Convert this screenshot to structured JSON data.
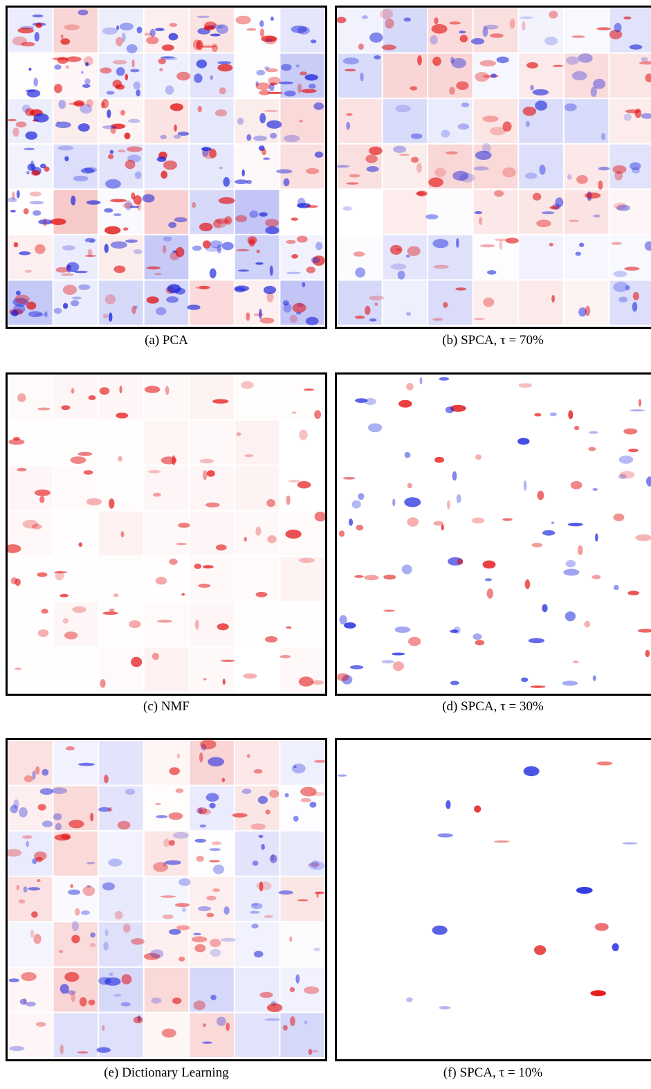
{
  "panels": [
    {
      "caption": "(a) PCA"
    },
    {
      "caption": "(b) SPCA, τ = 70%"
    },
    {
      "caption": "(c) NMF"
    },
    {
      "caption": "(d) SPCA, τ = 30%"
    },
    {
      "caption": "(e) Dictionary Learning"
    },
    {
      "caption": "(f) SPCA, τ = 10%"
    }
  ]
}
